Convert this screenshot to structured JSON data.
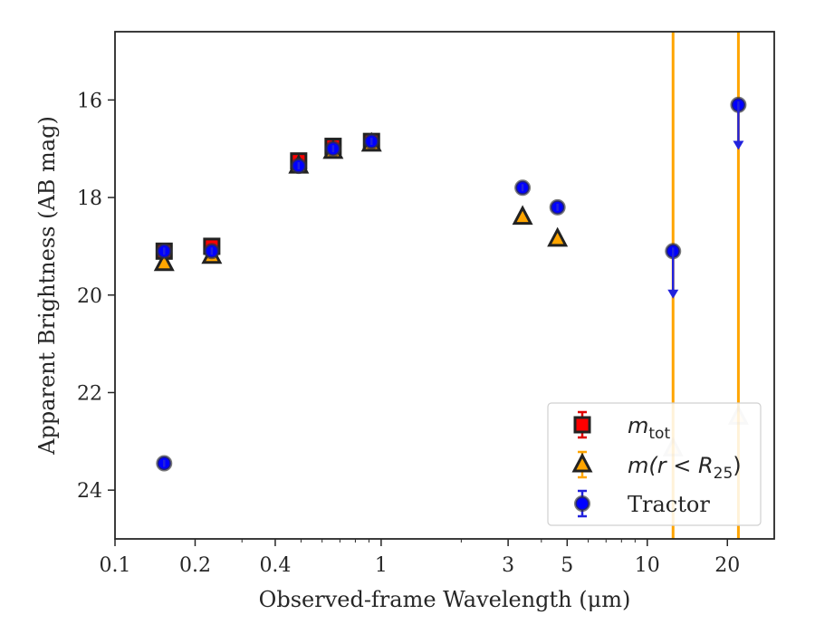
{
  "chart_data": {
    "type": "scatter",
    "title": "",
    "xlabel": "Observed-frame Wavelength (μm)",
    "ylabel": "Apparent Brightness (AB mag)",
    "xscale": "log",
    "xlim": [
      0.1,
      30
    ],
    "ylim": [
      25.0,
      14.6
    ],
    "y_inverted": true,
    "xticks": [
      0.1,
      0.2,
      0.4,
      1,
      3,
      5,
      10,
      20
    ],
    "xtick_labels": [
      "0.1",
      "0.2",
      "0.4",
      "1",
      "3",
      "5",
      "10",
      "20"
    ],
    "yticks": [
      16,
      18,
      20,
      22,
      24
    ],
    "ytick_labels": [
      "16",
      "18",
      "20",
      "22",
      "24"
    ],
    "grid": false,
    "legend_position": "lower-right",
    "vertical_lines": [
      {
        "x": 12.5,
        "color": "#FFA500"
      },
      {
        "x": 22.0,
        "color": "#FFA500"
      }
    ],
    "series": [
      {
        "name": "m_tot",
        "legend_label": "m_tot",
        "marker": "square",
        "color": "#FF0000",
        "x": [
          0.153,
          0.231,
          0.49,
          0.66,
          0.92
        ],
        "y": [
          19.1,
          19.0,
          17.25,
          16.95,
          16.85
        ]
      },
      {
        "name": "m(r<R_25)",
        "legend_label": "m(r<R_25)",
        "marker": "triangle",
        "color": "#FFA500",
        "x": [
          0.153,
          0.231,
          0.49,
          0.66,
          0.92,
          3.4,
          4.6
        ],
        "y": [
          19.35,
          19.2,
          17.35,
          17.05,
          16.9,
          18.4,
          18.85
        ],
        "extra_points": [
          {
            "x": 12.5,
            "y": 23.15,
            "faded": true
          },
          {
            "x": 22.0,
            "y": 22.5,
            "faded": true
          }
        ]
      },
      {
        "name": "Tractor",
        "legend_label": "Tractor",
        "marker": "circle",
        "color": "#0000FF",
        "x": [
          0.153,
          0.153,
          0.231,
          0.49,
          0.66,
          0.92,
          3.4,
          4.6,
          12.5,
          22.0
        ],
        "y": [
          23.45,
          19.1,
          19.1,
          17.35,
          17.0,
          16.85,
          17.8,
          18.2,
          19.1,
          16.1
        ],
        "upper_limits": [
          {
            "x": 12.5,
            "y_from": 19.1,
            "y_to": 20.0
          },
          {
            "x": 22.0,
            "y_from": 16.1,
            "y_to": 16.95
          }
        ]
      }
    ]
  }
}
